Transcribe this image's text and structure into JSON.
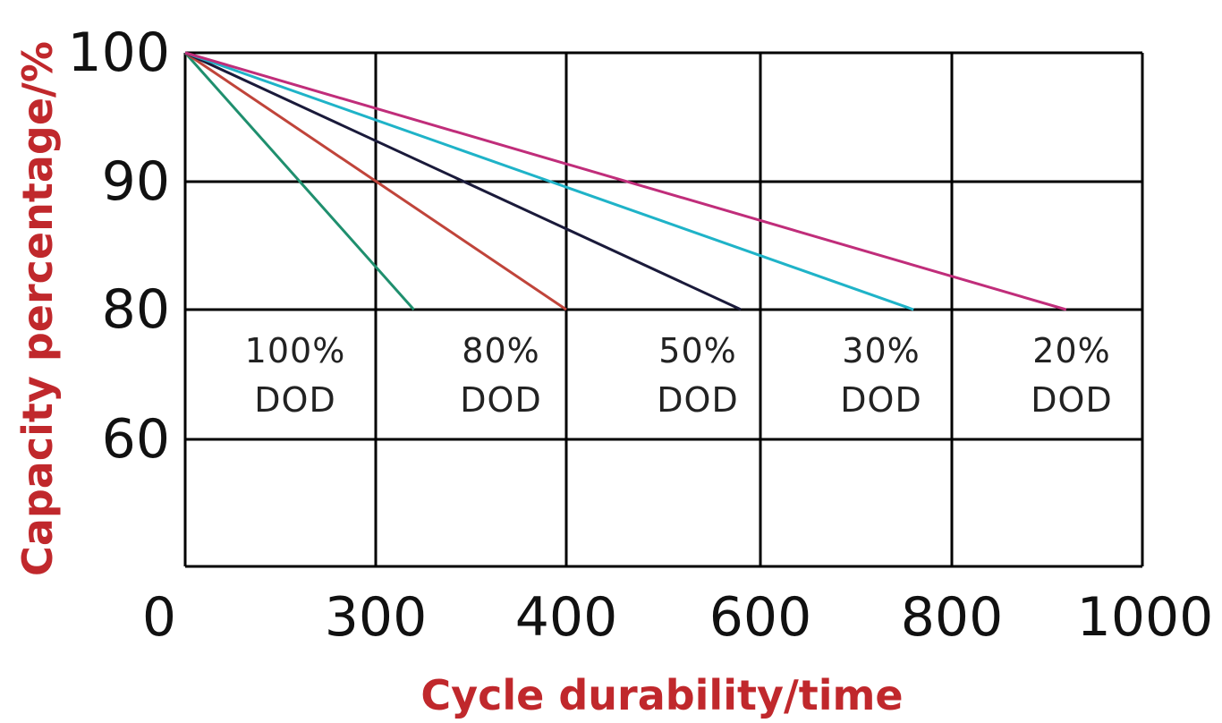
{
  "chart_data": {
    "type": "line",
    "xlabel": "Cycle durability/time",
    "ylabel": "Capacity percentage/%",
    "x_ticks": [
      "0",
      "300",
      "400",
      "600",
      "800",
      "1000"
    ],
    "y_ticks": [
      "100",
      "90",
      "80",
      "60"
    ],
    "grid": true,
    "series": [
      {
        "name": "",
        "color": "#1f8f6e",
        "x": [
          0,
          320
        ],
        "y": [
          100,
          80
        ]
      },
      {
        "name": "",
        "color": "#c0443a",
        "x": [
          0,
          400
        ],
        "y": [
          100,
          80
        ]
      },
      {
        "name": "",
        "color": "#1a1a3a",
        "x": [
          0,
          580
        ],
        "y": [
          100,
          80
        ]
      },
      {
        "name": "",
        "color": "#1fb3c8",
        "x": [
          0,
          760
        ],
        "y": [
          100,
          80
        ]
      },
      {
        "name": "",
        "color": "#c02d7a",
        "x": [
          0,
          920
        ],
        "y": [
          100,
          80
        ]
      }
    ],
    "region_labels": [
      {
        "line1": "100%",
        "line2": "DOD"
      },
      {
        "line1": "80%",
        "line2": "DOD"
      },
      {
        "line1": "50%",
        "line2": "DOD"
      },
      {
        "line1": "30%",
        "line2": "DOD"
      },
      {
        "line1": "20%",
        "line2": "DOD"
      }
    ]
  }
}
